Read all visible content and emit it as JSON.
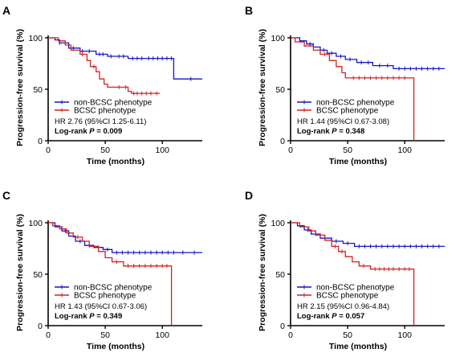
{
  "chart_data": [
    {
      "type": "line",
      "panel": "A",
      "xlabel": "Time (months)",
      "ylabel": "Progression-free survival (%)",
      "xlim": [
        0,
        135
      ],
      "ylim": [
        0,
        100
      ],
      "x_ticks": [
        0,
        50,
        100
      ],
      "y_ticks": [
        0,
        50,
        100
      ],
      "grid": false,
      "legend_position": "bottom-left",
      "hr_text": "HR 2.76 (95%CI 1.25-6.11)",
      "logrank_prefix": "Log-rank ",
      "logrank_p_symbol": "P",
      "logrank_value": " = 0.009",
      "series": [
        {
          "name": "non-BCSC phenotype",
          "color": "#1515c8",
          "x": [
            0,
            6,
            6,
            10,
            10,
            18,
            18,
            28,
            28,
            42,
            42,
            52,
            52,
            70,
            70,
            110,
            110,
            135
          ],
          "y": [
            100,
            100,
            98,
            98,
            95,
            95,
            90,
            90,
            87,
            87,
            84,
            84,
            82,
            82,
            80,
            80,
            60,
            60
          ],
          "censor": [
            [
              10,
              95
            ],
            [
              22,
              90
            ],
            [
              30,
              87
            ],
            [
              36,
              87
            ],
            [
              45,
              84
            ],
            [
              48,
              84
            ],
            [
              55,
              82
            ],
            [
              62,
              82
            ],
            [
              66,
              82
            ],
            [
              74,
              80
            ],
            [
              78,
              80
            ],
            [
              82,
              80
            ],
            [
              88,
              80
            ],
            [
              92,
              80
            ],
            [
              96,
              80
            ],
            [
              100,
              80
            ],
            [
              104,
              80
            ],
            [
              108,
              80
            ],
            [
              125,
              60
            ]
          ]
        },
        {
          "name": "BCSC phenotype",
          "color": "#d42020",
          "x": [
            0,
            9,
            9,
            15,
            15,
            20,
            20,
            28,
            28,
            34,
            34,
            37,
            37,
            42,
            42,
            45,
            45,
            49,
            49,
            52,
            52,
            70,
            70,
            73,
            73,
            98
          ],
          "y": [
            100,
            100,
            97,
            97,
            93,
            93,
            88,
            88,
            84,
            84,
            78,
            78,
            72,
            72,
            67,
            67,
            60,
            60,
            55,
            55,
            52,
            52,
            48,
            48,
            46,
            46
          ],
          "censor": [
            [
              30,
              84
            ],
            [
              40,
              72
            ],
            [
              62,
              52
            ],
            [
              68,
              52
            ],
            [
              75,
              46
            ],
            [
              78,
              46
            ],
            [
              82,
              46
            ],
            [
              86,
              46
            ],
            [
              90,
              46
            ],
            [
              95,
              46
            ]
          ]
        }
      ]
    },
    {
      "type": "line",
      "panel": "B",
      "xlabel": "Time (months)",
      "ylabel": "Progression-free survival (%)",
      "xlim": [
        0,
        135
      ],
      "ylim": [
        0,
        100
      ],
      "x_ticks": [
        0,
        50,
        100
      ],
      "y_ticks": [
        0,
        50,
        100
      ],
      "grid": false,
      "legend_position": "bottom-left",
      "hr_text": "HR 1.44 (95%CI 0.67-3.08)",
      "logrank_prefix": "Log-rank ",
      "logrank_p_symbol": "P",
      "logrank_value": " = 0.348",
      "series": [
        {
          "name": "non-BCSC phenotype",
          "color": "#1515c8",
          "x": [
            0,
            8,
            8,
            14,
            14,
            20,
            20,
            26,
            26,
            32,
            32,
            40,
            40,
            48,
            48,
            58,
            58,
            72,
            72,
            90,
            90,
            135
          ],
          "y": [
            100,
            100,
            97,
            97,
            94,
            94,
            91,
            91,
            88,
            88,
            85,
            85,
            82,
            82,
            79,
            79,
            76,
            76,
            73,
            73,
            70,
            70
          ],
          "censor": [
            [
              17,
              94
            ],
            [
              29,
              88
            ],
            [
              36,
              85
            ],
            [
              44,
              82
            ],
            [
              52,
              79
            ],
            [
              62,
              76
            ],
            [
              68,
              76
            ],
            [
              78,
              73
            ],
            [
              85,
              73
            ],
            [
              95,
              70
            ],
            [
              100,
              70
            ],
            [
              105,
              70
            ],
            [
              110,
              70
            ],
            [
              115,
              70
            ],
            [
              120,
              70
            ],
            [
              125,
              70
            ],
            [
              130,
              70
            ]
          ]
        },
        {
          "name": "BCSC phenotype",
          "color": "#d42020",
          "x": [
            0,
            4,
            4,
            12,
            12,
            20,
            20,
            26,
            26,
            34,
            34,
            40,
            40,
            45,
            45,
            48,
            48,
            108,
            108
          ],
          "y": [
            100,
            100,
            96,
            96,
            92,
            92,
            88,
            88,
            84,
            84,
            78,
            78,
            72,
            72,
            66,
            66,
            61,
            61,
            0
          ],
          "censor": [
            [
              30,
              84
            ],
            [
              55,
              61
            ],
            [
              60,
              61
            ],
            [
              65,
              61
            ],
            [
              70,
              61
            ],
            [
              75,
              61
            ],
            [
              80,
              61
            ],
            [
              85,
              61
            ],
            [
              90,
              61
            ],
            [
              95,
              61
            ],
            [
              100,
              61
            ]
          ]
        }
      ]
    },
    {
      "type": "line",
      "panel": "C",
      "xlabel": "Time (months)",
      "ylabel": "Progression-free survival (%)",
      "xlim": [
        0,
        135
      ],
      "ylim": [
        0,
        100
      ],
      "x_ticks": [
        0,
        50,
        100
      ],
      "y_ticks": [
        0,
        50,
        100
      ],
      "grid": false,
      "legend_position": "bottom-left",
      "hr_text": "HR 1.43 (95%CI 0.67-3.06)",
      "logrank_prefix": "Log-rank ",
      "logrank_p_symbol": "P",
      "logrank_value": " = 0.349",
      "series": [
        {
          "name": "non-BCSC phenotype",
          "color": "#1515c8",
          "x": [
            0,
            6,
            6,
            12,
            12,
            18,
            18,
            24,
            24,
            32,
            32,
            40,
            40,
            48,
            48,
            56,
            56,
            135
          ],
          "y": [
            100,
            100,
            96,
            96,
            92,
            92,
            87,
            87,
            82,
            82,
            78,
            78,
            76,
            76,
            74,
            74,
            71,
            71
          ],
          "censor": [
            [
              15,
              92
            ],
            [
              28,
              82
            ],
            [
              36,
              78
            ],
            [
              44,
              76
            ],
            [
              52,
              74
            ],
            [
              60,
              71
            ],
            [
              65,
              71
            ],
            [
              70,
              71
            ],
            [
              75,
              71
            ],
            [
              80,
              71
            ],
            [
              85,
              71
            ],
            [
              90,
              71
            ],
            [
              95,
              71
            ],
            [
              100,
              71
            ],
            [
              105,
              71
            ],
            [
              110,
              71
            ],
            [
              118,
              71
            ],
            [
              128,
              71
            ]
          ]
        },
        {
          "name": "BCSC phenotype",
          "color": "#d42020",
          "x": [
            0,
            4,
            4,
            10,
            10,
            16,
            16,
            22,
            22,
            30,
            30,
            36,
            36,
            44,
            44,
            50,
            50,
            56,
            56,
            66,
            66,
            108,
            108
          ],
          "y": [
            100,
            100,
            97,
            97,
            94,
            94,
            90,
            90,
            86,
            86,
            82,
            82,
            77,
            77,
            72,
            72,
            66,
            66,
            62,
            62,
            58,
            58,
            0
          ],
          "censor": [
            [
              26,
              86
            ],
            [
              40,
              77
            ],
            [
              60,
              62
            ],
            [
              70,
              58
            ],
            [
              75,
              58
            ],
            [
              80,
              58
            ],
            [
              85,
              58
            ],
            [
              90,
              58
            ],
            [
              95,
              58
            ],
            [
              100,
              58
            ],
            [
              104,
              58
            ]
          ]
        }
      ]
    },
    {
      "type": "line",
      "panel": "D",
      "xlabel": "Time (months)",
      "ylabel": "Progression-free survival (%)",
      "xlim": [
        0,
        135
      ],
      "ylim": [
        0,
        100
      ],
      "x_ticks": [
        0,
        50,
        100
      ],
      "y_ticks": [
        0,
        50,
        100
      ],
      "grid": false,
      "legend_position": "bottom-left",
      "hr_text": "HR 2.15 (95%CI 0.96-4.84)",
      "logrank_prefix": "Log-rank ",
      "logrank_p_symbol": "P",
      "logrank_value": " = 0.057",
      "series": [
        {
          "name": "non-BCSC phenotype",
          "color": "#1515c8",
          "x": [
            0,
            6,
            6,
            12,
            12,
            18,
            18,
            26,
            26,
            36,
            36,
            46,
            46,
            56,
            56,
            135
          ],
          "y": [
            100,
            100,
            97,
            97,
            93,
            93,
            89,
            89,
            85,
            85,
            82,
            82,
            80,
            80,
            77,
            77
          ],
          "censor": [
            [
              15,
              93
            ],
            [
              22,
              89
            ],
            [
              30,
              85
            ],
            [
              40,
              82
            ],
            [
              50,
              80
            ],
            [
              60,
              77
            ],
            [
              65,
              77
            ],
            [
              70,
              77
            ],
            [
              75,
              77
            ],
            [
              80,
              77
            ],
            [
              85,
              77
            ],
            [
              90,
              77
            ],
            [
              95,
              77
            ],
            [
              100,
              77
            ],
            [
              105,
              77
            ],
            [
              110,
              77
            ],
            [
              115,
              77
            ],
            [
              120,
              77
            ],
            [
              125,
              77
            ],
            [
              130,
              77
            ]
          ]
        },
        {
          "name": "BCSC phenotype",
          "color": "#d42020",
          "x": [
            0,
            8,
            8,
            16,
            16,
            22,
            22,
            30,
            30,
            36,
            36,
            42,
            42,
            48,
            48,
            54,
            54,
            60,
            60,
            70,
            70,
            108,
            108
          ],
          "y": [
            100,
            100,
            96,
            96,
            92,
            92,
            88,
            88,
            83,
            83,
            77,
            77,
            72,
            72,
            67,
            67,
            62,
            62,
            58,
            58,
            55,
            55,
            0
          ],
          "censor": [
            [
              26,
              88
            ],
            [
              39,
              77
            ],
            [
              45,
              72
            ],
            [
              64,
              58
            ],
            [
              74,
              55
            ],
            [
              78,
              55
            ],
            [
              82,
              55
            ],
            [
              86,
              55
            ],
            [
              90,
              55
            ],
            [
              95,
              55
            ],
            [
              100,
              55
            ],
            [
              104,
              55
            ]
          ]
        }
      ]
    }
  ]
}
